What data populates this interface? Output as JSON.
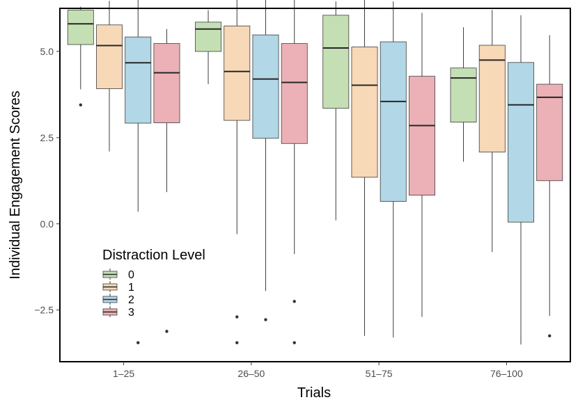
{
  "chart_data": {
    "type": "boxplot",
    "xlabel": "Trials",
    "ylabel": "Individual Engagement Scores",
    "ylim": [
      -4,
      6.25
    ],
    "yticks": [
      -2.5,
      0.0,
      2.5,
      5.0
    ],
    "ytick_labels": [
      "−2.5",
      "0.0",
      "2.5",
      "5.0"
    ],
    "categories": [
      "1–25",
      "26–50",
      "51–75",
      "76–100"
    ],
    "grid": false,
    "legend": {
      "title": "Distraction Level",
      "position": "bottom-left inside",
      "entries": [
        "0",
        "1",
        "2",
        "3"
      ]
    },
    "colors": {
      "0": "#c5dfb4",
      "1": "#f7d8b7",
      "2": "#b2d7e6",
      "3": "#ebb1b6",
      "line": "#3c3c3c",
      "median": "#262626",
      "panel_border": "#000000"
    },
    "series": [
      {
        "name": "0",
        "boxes": [
          {
            "category": "1–25",
            "whisker_low": 3.9,
            "q1": 5.2,
            "median": 5.8,
            "q3": 6.2,
            "whisker_high": 6.3,
            "outliers": [
              3.45
            ]
          },
          {
            "category": "26–50",
            "whisker_low": 4.05,
            "q1": 5.0,
            "median": 5.65,
            "q3": 5.85,
            "whisker_high": 6.2,
            "outliers": []
          },
          {
            "category": "51–75",
            "whisker_low": 0.1,
            "q1": 3.35,
            "median": 5.1,
            "q3": 6.05,
            "whisker_high": 6.45,
            "outliers": []
          },
          {
            "category": "76–100",
            "whisker_low": 1.8,
            "q1": 2.95,
            "median": 4.23,
            "q3": 4.52,
            "whisker_high": 5.7,
            "outliers": []
          }
        ]
      },
      {
        "name": "1",
        "boxes": [
          {
            "category": "1–25",
            "whisker_low": 2.1,
            "q1": 3.92,
            "median": 5.17,
            "q3": 5.77,
            "whisker_high": 6.47,
            "outliers": []
          },
          {
            "category": "26–50",
            "whisker_low": -0.3,
            "q1": 3.0,
            "median": 4.42,
            "q3": 5.74,
            "whisker_high": 6.6,
            "outliers": [
              -2.7,
              -3.45
            ]
          },
          {
            "category": "51–75",
            "whisker_low": -3.25,
            "q1": 1.35,
            "median": 4.02,
            "q3": 5.13,
            "whisker_high": 6.58,
            "outliers": []
          },
          {
            "category": "76–100",
            "whisker_low": -0.82,
            "q1": 2.08,
            "median": 4.75,
            "q3": 5.18,
            "whisker_high": 6.2,
            "outliers": []
          }
        ]
      },
      {
        "name": "2",
        "boxes": [
          {
            "category": "1–25",
            "whisker_low": 0.35,
            "q1": 2.92,
            "median": 4.67,
            "q3": 5.42,
            "whisker_high": 6.57,
            "outliers": [
              -3.45
            ]
          },
          {
            "category": "26–50",
            "whisker_low": -1.95,
            "q1": 2.48,
            "median": 4.2,
            "q3": 5.48,
            "whisker_high": 6.58,
            "outliers": [
              -2.78
            ]
          },
          {
            "category": "51–75",
            "whisker_low": -3.3,
            "q1": 0.65,
            "median": 3.55,
            "q3": 5.28,
            "whisker_high": 6.45,
            "outliers": []
          },
          {
            "category": "76–100",
            "whisker_low": -3.5,
            "q1": 0.05,
            "median": 3.45,
            "q3": 4.68,
            "whisker_high": 6.05,
            "outliers": []
          }
        ]
      },
      {
        "name": "3",
        "boxes": [
          {
            "category": "1–25",
            "whisker_low": 0.92,
            "q1": 2.93,
            "median": 4.38,
            "q3": 5.23,
            "whisker_high": 5.65,
            "outliers": [
              -3.12
            ]
          },
          {
            "category": "26–50",
            "whisker_low": -0.88,
            "q1": 2.33,
            "median": 4.1,
            "q3": 5.23,
            "whisker_high": 6.58,
            "outliers": [
              -2.25,
              -3.45
            ]
          },
          {
            "category": "51–75",
            "whisker_low": -2.7,
            "q1": 0.83,
            "median": 2.85,
            "q3": 4.28,
            "whisker_high": 6.12,
            "outliers": []
          },
          {
            "category": "76–100",
            "whisker_low": -2.67,
            "q1": 1.25,
            "median": 3.67,
            "q3": 4.05,
            "whisker_high": 5.47,
            "outliers": [
              -3.25
            ]
          }
        ]
      }
    ]
  }
}
